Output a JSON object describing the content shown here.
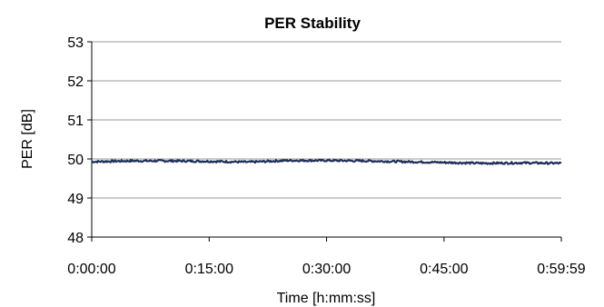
{
  "chart_data": {
    "type": "line",
    "title": "PER Stability",
    "xlabel": "Time [h:mm:ss]",
    "ylabel": "PER [dB]",
    "ylim": [
      48,
      53
    ],
    "y_ticks": [
      48,
      49,
      50,
      51,
      52,
      53
    ],
    "x_ticks": [
      "0:00:00",
      "0:15:00",
      "0:30:00",
      "0:45:00",
      "0:59:59"
    ],
    "xlim": [
      "0:00:00",
      "0:59:59"
    ],
    "grid": "horizontal",
    "line_color": "#1f2f5a",
    "series": [
      {
        "values_note": "",
        "x": [
          "0:00:00",
          "0:05:00",
          "0:10:00",
          "0:15:00",
          "0:20:00",
          "0:25:00",
          "0:30:00",
          "0:35:00",
          "0:40:00",
          "0:45:00",
          "0:50:00",
          "0:55:00",
          "0:59:59"
        ],
        "values": [
          49.93,
          49.95,
          49.95,
          49.94,
          49.92,
          49.96,
          49.96,
          49.95,
          49.93,
          49.91,
          49.89,
          49.9,
          49.89
        ]
      }
    ]
  }
}
